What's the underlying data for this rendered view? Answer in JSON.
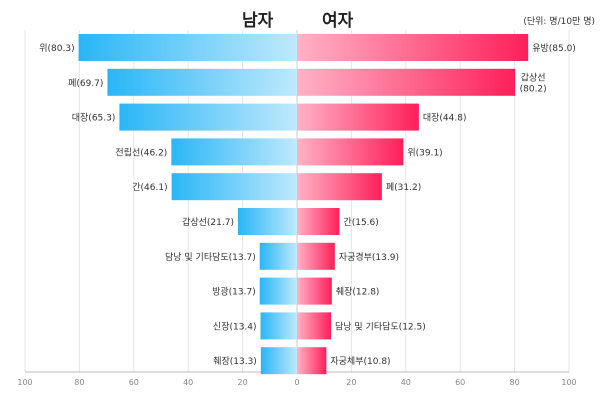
{
  "chart_data": {
    "type": "bar",
    "subtype": "population-pyramid",
    "title_left": "남자",
    "title_right": "여자",
    "unit": "(단위: 명/10만 명)",
    "xlim": [
      -100,
      100
    ],
    "ticks": [
      -100,
      -80,
      -60,
      -40,
      -20,
      0,
      20,
      40,
      60,
      80,
      100
    ],
    "tick_labels": [
      "100",
      "80",
      "60",
      "40",
      "20",
      "0",
      "20",
      "40",
      "60",
      "80",
      "100"
    ],
    "grid": true,
    "colors": {
      "male": "#29b6f6",
      "male_light": "#bfe9fd",
      "female": "#ff1f5a",
      "female_light": "#ffb3c6"
    },
    "male": [
      {
        "label": "위(80.3)",
        "value": 80.3
      },
      {
        "label": "폐(69.7)",
        "value": 69.7
      },
      {
        "label": "대장(65.3)",
        "value": 65.3
      },
      {
        "label": "전립선(46.2)",
        "value": 46.2
      },
      {
        "label": "간(46.1)",
        "value": 46.1
      },
      {
        "label": "갑상선(21.7)",
        "value": 21.7
      },
      {
        "label": "담낭 및 기타담도(13.7)",
        "value": 13.7
      },
      {
        "label": "방광(13.7)",
        "value": 13.7
      },
      {
        "label": "신장(13.4)",
        "value": 13.4
      },
      {
        "label": "췌장(13.3)",
        "value": 13.3
      }
    ],
    "female": [
      {
        "label": "유방(85.0)",
        "value": 85.0
      },
      {
        "label": "갑상선\n(80.2)",
        "value": 80.2
      },
      {
        "label": "대장(44.8)",
        "value": 44.8
      },
      {
        "label": "위(39.1)",
        "value": 39.1
      },
      {
        "label": "폐(31.2)",
        "value": 31.2
      },
      {
        "label": "간(15.6)",
        "value": 15.6
      },
      {
        "label": "자궁경부(13.9)",
        "value": 13.9
      },
      {
        "label": "췌장(12.8)",
        "value": 12.8
      },
      {
        "label": "담낭 및 기타담도(12.5)",
        "value": 12.5
      },
      {
        "label": "자궁체부(10.8)",
        "value": 10.8
      }
    ]
  }
}
